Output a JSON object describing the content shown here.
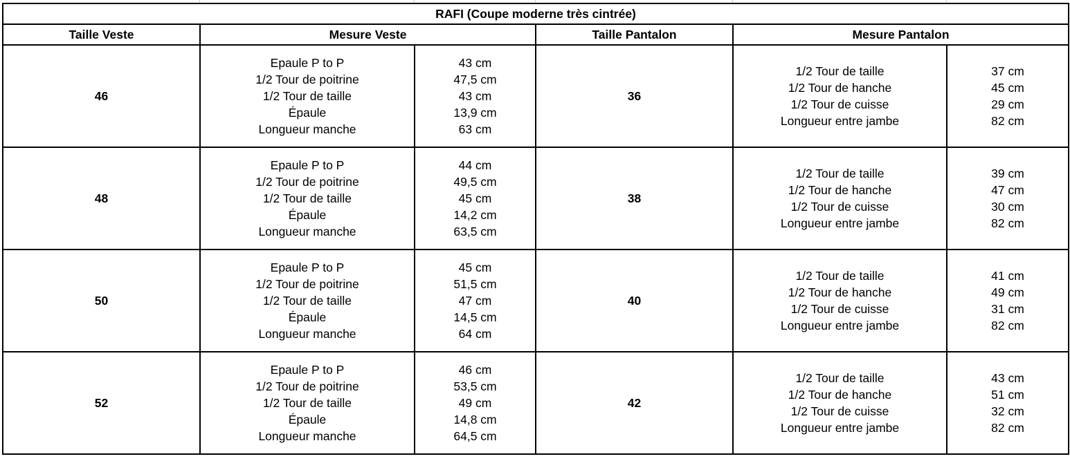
{
  "title": "RAFI (Coupe moderne très cintrée)",
  "headers": {
    "taille_veste": "Taille Veste",
    "mesure_veste": "Mesure Veste",
    "taille_pantalon": "Taille Pantalon",
    "mesure_pantalon": "Mesure Pantalon"
  },
  "veste_labels": [
    "Epaule P to P",
    "1/2 Tour de poitrine",
    "1/2 Tour de taille",
    "Épaule",
    "Longueur manche"
  ],
  "pantalon_labels": [
    "1/2 Tour de taille",
    "1/2 Tour de hanche",
    "1/2 Tour de cuisse",
    "Longueur entre jambe"
  ],
  "rows": [
    {
      "veste": "46",
      "veste_values": [
        "43 cm",
        "47,5 cm",
        "43 cm",
        "13,9 cm",
        "63 cm"
      ],
      "pantalon": "36",
      "pantalon_values": [
        "37 cm",
        "45 cm",
        "29 cm",
        "82 cm"
      ]
    },
    {
      "veste": "48",
      "veste_values": [
        "44 cm",
        "49,5 cm",
        "45 cm",
        "14,2 cm",
        "63,5 cm"
      ],
      "pantalon": "38",
      "pantalon_values": [
        "39 cm",
        "47 cm",
        "30 cm",
        "82 cm"
      ]
    },
    {
      "veste": "50",
      "veste_values": [
        "45 cm",
        "51,5 cm",
        "47 cm",
        "14,5 cm",
        "64 cm"
      ],
      "pantalon": "40",
      "pantalon_values": [
        "41 cm",
        "49 cm",
        "31 cm",
        "82 cm"
      ]
    },
    {
      "veste": "52",
      "veste_values": [
        "46 cm",
        "53,5 cm",
        "49 cm",
        "14,8 cm",
        "64,5 cm"
      ],
      "pantalon": "42",
      "pantalon_values": [
        "43 cm",
        "51 cm",
        "32 cm",
        "82 cm"
      ]
    }
  ]
}
